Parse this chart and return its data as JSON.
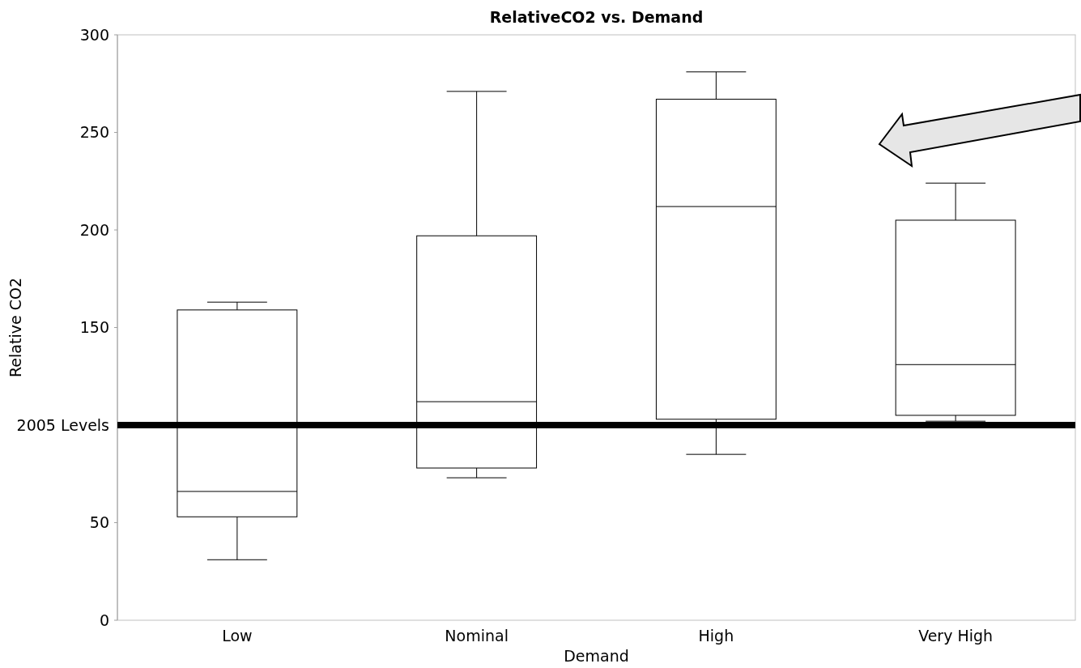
{
  "chart_data": {
    "type": "box",
    "title": "RelativeCO2 vs. Demand",
    "xlabel": "Demand",
    "ylabel": "Relative CO2",
    "categories": [
      "Low",
      "Nominal",
      "High",
      "Very High"
    ],
    "boxes": [
      {
        "low": 31,
        "q1": 53,
        "median": 66,
        "q3": 159,
        "high": 163
      },
      {
        "low": 73,
        "q1": 78,
        "median": 112,
        "q3": 197,
        "high": 271
      },
      {
        "low": 85,
        "q1": 103,
        "median": 212,
        "q3": 267,
        "high": 281
      },
      {
        "low": 102,
        "q1": 105,
        "median": 131,
        "q3": 205,
        "high": 224
      }
    ],
    "ylim": [
      0,
      300
    ],
    "yticks": [
      0,
      50,
      150,
      200,
      250,
      300
    ],
    "ref_lines": [
      {
        "axis": "y",
        "value": 100,
        "label": "2005 Levels",
        "color": "#000000"
      }
    ],
    "grid": false
  }
}
